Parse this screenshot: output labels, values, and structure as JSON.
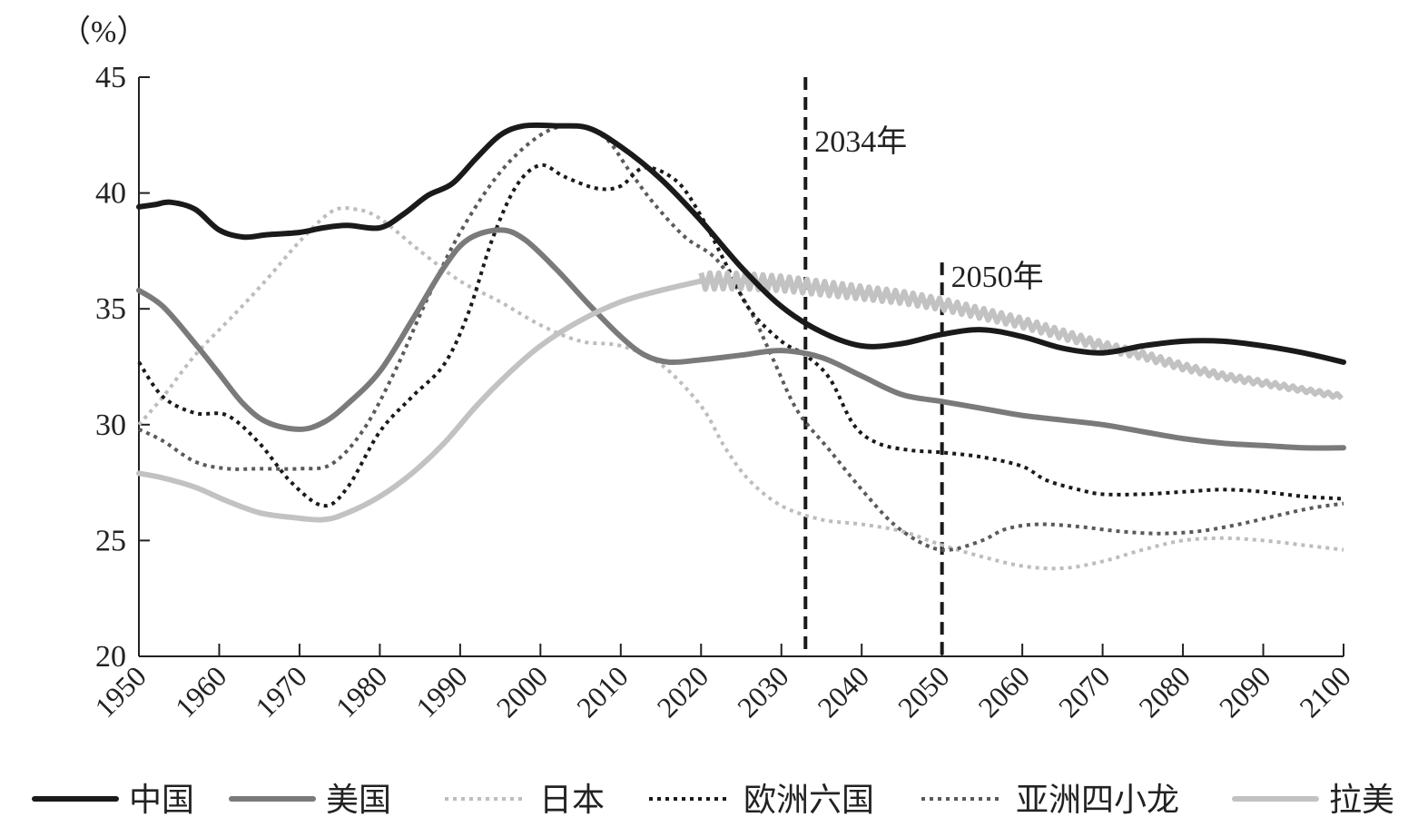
{
  "chart_data": {
    "type": "line",
    "unit_label": "（%）",
    "ylim": [
      20,
      45
    ],
    "yticks": [
      20,
      25,
      30,
      35,
      40,
      45
    ],
    "xlim": [
      1950,
      2100
    ],
    "xticks": [
      1950,
      1960,
      1970,
      1980,
      1990,
      2000,
      2010,
      2020,
      2030,
      2040,
      2050,
      2060,
      2070,
      2080,
      2090,
      2100
    ],
    "annotations": [
      {
        "x": 2033,
        "label": "2034年"
      },
      {
        "x": 2050,
        "label": "2050年"
      }
    ],
    "series": [
      {
        "name": "中国",
        "color": "#1a1a1a",
        "style": "solid",
        "wavy_from": null,
        "points": [
          [
            1950,
            39.4
          ],
          [
            1952,
            39.5
          ],
          [
            1954,
            39.6
          ],
          [
            1957,
            39.3
          ],
          [
            1960,
            38.4
          ],
          [
            1963,
            38.1
          ],
          [
            1966,
            38.2
          ],
          [
            1970,
            38.3
          ],
          [
            1973,
            38.5
          ],
          [
            1976,
            38.6
          ],
          [
            1980,
            38.5
          ],
          [
            1983,
            39.1
          ],
          [
            1986,
            39.9
          ],
          [
            1989,
            40.4
          ],
          [
            1992,
            41.5
          ],
          [
            1995,
            42.5
          ],
          [
            1998,
            42.9
          ],
          [
            2002,
            42.9
          ],
          [
            2006,
            42.8
          ],
          [
            2010,
            42.0
          ],
          [
            2015,
            40.6
          ],
          [
            2020,
            38.8
          ],
          [
            2025,
            36.8
          ],
          [
            2030,
            35.1
          ],
          [
            2035,
            34.0
          ],
          [
            2040,
            33.4
          ],
          [
            2045,
            33.5
          ],
          [
            2050,
            33.9
          ],
          [
            2055,
            34.1
          ],
          [
            2060,
            33.8
          ],
          [
            2065,
            33.3
          ],
          [
            2070,
            33.1
          ],
          [
            2075,
            33.4
          ],
          [
            2080,
            33.6
          ],
          [
            2085,
            33.6
          ],
          [
            2090,
            33.4
          ],
          [
            2095,
            33.1
          ],
          [
            2100,
            32.7
          ]
        ]
      },
      {
        "name": "美国",
        "color": "#7a7a7a",
        "style": "solid",
        "wavy_from": null,
        "points": [
          [
            1950,
            35.8
          ],
          [
            1953,
            35.1
          ],
          [
            1957,
            33.5
          ],
          [
            1960,
            32.2
          ],
          [
            1963,
            30.9
          ],
          [
            1966,
            30.1
          ],
          [
            1970,
            29.8
          ],
          [
            1973,
            30.1
          ],
          [
            1976,
            30.9
          ],
          [
            1980,
            32.3
          ],
          [
            1984,
            34.5
          ],
          [
            1988,
            36.8
          ],
          [
            1991,
            38.0
          ],
          [
            1995,
            38.4
          ],
          [
            1998,
            38.0
          ],
          [
            2002,
            36.7
          ],
          [
            2006,
            35.2
          ],
          [
            2010,
            33.8
          ],
          [
            2013,
            33.0
          ],
          [
            2016,
            32.7
          ],
          [
            2020,
            32.8
          ],
          [
            2025,
            33.0
          ],
          [
            2030,
            33.2
          ],
          [
            2035,
            32.9
          ],
          [
            2040,
            32.1
          ],
          [
            2045,
            31.3
          ],
          [
            2050,
            31.0
          ],
          [
            2055,
            30.7
          ],
          [
            2060,
            30.4
          ],
          [
            2065,
            30.2
          ],
          [
            2070,
            30.0
          ],
          [
            2075,
            29.7
          ],
          [
            2080,
            29.4
          ],
          [
            2085,
            29.2
          ],
          [
            2090,
            29.1
          ],
          [
            2095,
            29.0
          ],
          [
            2100,
            29.0
          ]
        ]
      },
      {
        "name": "日本",
        "color": "#bdbdbd",
        "style": "dotted",
        "wavy_from": null,
        "points": [
          [
            1950,
            30.0
          ],
          [
            1953,
            31.2
          ],
          [
            1957,
            33.0
          ],
          [
            1962,
            34.8
          ],
          [
            1966,
            36.3
          ],
          [
            1970,
            37.9
          ],
          [
            1974,
            39.2
          ],
          [
            1977,
            39.3
          ],
          [
            1980,
            38.9
          ],
          [
            1985,
            37.5
          ],
          [
            1990,
            36.2
          ],
          [
            1995,
            35.3
          ],
          [
            2000,
            34.3
          ],
          [
            2005,
            33.6
          ],
          [
            2010,
            33.4
          ],
          [
            2015,
            32.6
          ],
          [
            2020,
            30.8
          ],
          [
            2023,
            29.0
          ],
          [
            2026,
            27.6
          ],
          [
            2030,
            26.5
          ],
          [
            2035,
            25.9
          ],
          [
            2040,
            25.7
          ],
          [
            2045,
            25.4
          ],
          [
            2050,
            24.8
          ],
          [
            2055,
            24.3
          ],
          [
            2060,
            23.9
          ],
          [
            2065,
            23.8
          ],
          [
            2070,
            24.1
          ],
          [
            2075,
            24.6
          ],
          [
            2080,
            25.0
          ],
          [
            2085,
            25.1
          ],
          [
            2090,
            25.0
          ],
          [
            2095,
            24.8
          ],
          [
            2100,
            24.6
          ]
        ]
      },
      {
        "name": "欧洲六国",
        "color": "#1a1a1a",
        "style": "dotted",
        "wavy_from": null,
        "points": [
          [
            1950,
            32.7
          ],
          [
            1953,
            31.2
          ],
          [
            1957,
            30.5
          ],
          [
            1961,
            30.4
          ],
          [
            1965,
            29.2
          ],
          [
            1969,
            27.5
          ],
          [
            1973,
            26.5
          ],
          [
            1976,
            27.3
          ],
          [
            1980,
            29.7
          ],
          [
            1984,
            31.2
          ],
          [
            1988,
            32.6
          ],
          [
            1991,
            34.8
          ],
          [
            1994,
            38.0
          ],
          [
            1997,
            40.3
          ],
          [
            2000,
            41.2
          ],
          [
            2003,
            40.7
          ],
          [
            2007,
            40.2
          ],
          [
            2010,
            40.3
          ],
          [
            2013,
            41.1
          ],
          [
            2017,
            40.5
          ],
          [
            2020,
            39.0
          ],
          [
            2023,
            37.0
          ],
          [
            2026,
            35.0
          ],
          [
            2030,
            33.6
          ],
          [
            2033,
            33.0
          ],
          [
            2036,
            32.0
          ],
          [
            2039,
            30.0
          ],
          [
            2042,
            29.2
          ],
          [
            2046,
            28.9
          ],
          [
            2050,
            28.8
          ],
          [
            2055,
            28.6
          ],
          [
            2060,
            28.2
          ],
          [
            2063,
            27.6
          ],
          [
            2067,
            27.2
          ],
          [
            2070,
            27.0
          ],
          [
            2075,
            27.0
          ],
          [
            2080,
            27.1
          ],
          [
            2085,
            27.2
          ],
          [
            2090,
            27.1
          ],
          [
            2095,
            26.9
          ],
          [
            2100,
            26.8
          ]
        ]
      },
      {
        "name": "亚洲四小龙",
        "color": "#5a5a5a",
        "style": "dotted",
        "wavy_from": null,
        "points": [
          [
            1950,
            29.8
          ],
          [
            1953,
            29.3
          ],
          [
            1957,
            28.4
          ],
          [
            1961,
            28.1
          ],
          [
            1965,
            28.1
          ],
          [
            1970,
            28.1
          ],
          [
            1974,
            28.3
          ],
          [
            1978,
            29.8
          ],
          [
            1982,
            32.4
          ],
          [
            1986,
            35.5
          ],
          [
            1990,
            38.3
          ],
          [
            1995,
            40.9
          ],
          [
            2000,
            42.5
          ],
          [
            2004,
            42.9
          ],
          [
            2008,
            42.4
          ],
          [
            2011,
            41.0
          ],
          [
            2014,
            39.6
          ],
          [
            2018,
            38.1
          ],
          [
            2022,
            37.1
          ],
          [
            2026,
            35.0
          ],
          [
            2029,
            32.8
          ],
          [
            2032,
            30.6
          ],
          [
            2036,
            28.9
          ],
          [
            2040,
            27.2
          ],
          [
            2044,
            25.7
          ],
          [
            2048,
            24.8
          ],
          [
            2051,
            24.6
          ],
          [
            2055,
            25.0
          ],
          [
            2058,
            25.5
          ],
          [
            2062,
            25.7
          ],
          [
            2067,
            25.6
          ],
          [
            2072,
            25.4
          ],
          [
            2077,
            25.3
          ],
          [
            2082,
            25.4
          ],
          [
            2087,
            25.7
          ],
          [
            2092,
            26.1
          ],
          [
            2096,
            26.4
          ],
          [
            2100,
            26.6
          ]
        ]
      },
      {
        "name": "拉美",
        "color": "#c2c2c2",
        "style": "solid",
        "wavy_from": 2020,
        "points": [
          [
            1950,
            27.9
          ],
          [
            1953,
            27.7
          ],
          [
            1957,
            27.3
          ],
          [
            1961,
            26.7
          ],
          [
            1965,
            26.2
          ],
          [
            1969,
            26.0
          ],
          [
            1973,
            25.9
          ],
          [
            1976,
            26.2
          ],
          [
            1980,
            26.9
          ],
          [
            1984,
            27.9
          ],
          [
            1988,
            29.2
          ],
          [
            1992,
            30.8
          ],
          [
            1996,
            32.2
          ],
          [
            2000,
            33.4
          ],
          [
            2005,
            34.5
          ],
          [
            2010,
            35.3
          ],
          [
            2015,
            35.8
          ],
          [
            2020,
            36.2
          ],
          [
            2025,
            36.2
          ],
          [
            2030,
            36.1
          ],
          [
            2035,
            35.9
          ],
          [
            2040,
            35.7
          ],
          [
            2045,
            35.5
          ],
          [
            2050,
            35.2
          ],
          [
            2055,
            34.8
          ],
          [
            2060,
            34.4
          ],
          [
            2065,
            33.9
          ],
          [
            2070,
            33.4
          ],
          [
            2075,
            33.0
          ],
          [
            2080,
            32.5
          ],
          [
            2085,
            32.1
          ],
          [
            2090,
            31.8
          ],
          [
            2095,
            31.5
          ],
          [
            2100,
            31.2
          ]
        ]
      }
    ]
  }
}
